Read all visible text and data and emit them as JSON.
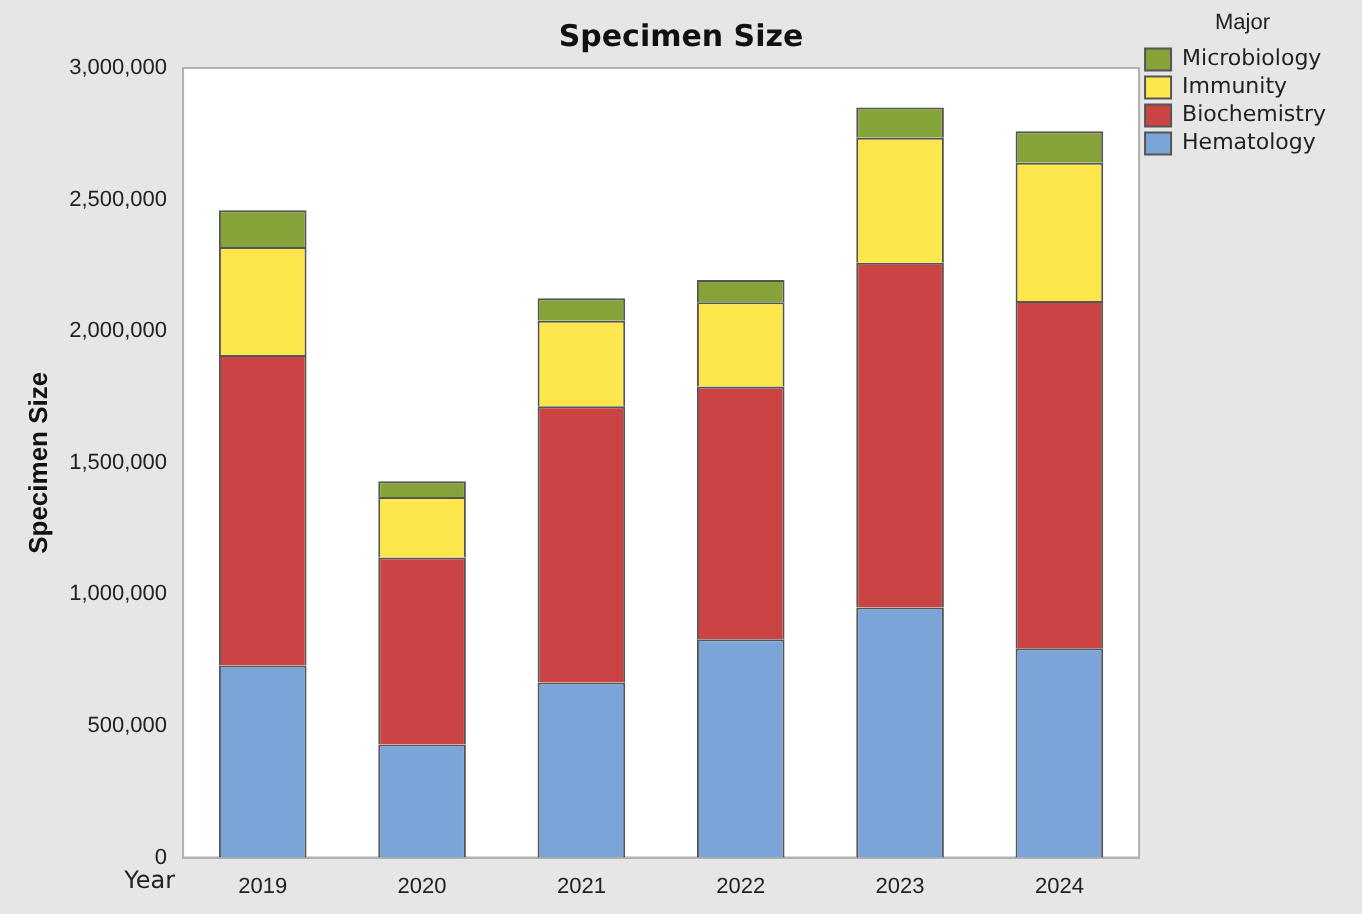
{
  "chart_data": {
    "type": "bar",
    "title": "Specimen Size",
    "xlabel": "Year",
    "ylabel": "Specimen Size",
    "legend_title": "Major",
    "categories": [
      "2019",
      "2020",
      "2021",
      "2022",
      "2023",
      "2024"
    ],
    "stacked": true,
    "ylim": [
      0,
      3000000
    ],
    "yticks": [
      {
        "value": 0,
        "label": "0"
      },
      {
        "value": 500000,
        "label": "500,000"
      },
      {
        "value": 1000000,
        "label": "1,000,000"
      },
      {
        "value": 1500000,
        "label": "1,500,000"
      },
      {
        "value": 2000000,
        "label": "2,000,000"
      },
      {
        "value": 2500000,
        "label": "2,500,000"
      },
      {
        "value": 3000000,
        "label": "3,000,000"
      }
    ],
    "grid": false,
    "legend": "top right",
    "series": [
      {
        "name": "Hematology",
        "color": "#7ba5d9",
        "values": [
          730000,
          430000,
          665000,
          830000,
          950000,
          795000
        ]
      },
      {
        "name": "Biochemistry",
        "color": "#c94442",
        "values": [
          1180000,
          710000,
          1050000,
          960000,
          1310000,
          1320000
        ]
      },
      {
        "name": "Immunity",
        "color": "#fde74c",
        "values": [
          410000,
          230000,
          325000,
          320000,
          475000,
          525000
        ]
      },
      {
        "name": "Microbiology",
        "color": "#86a33a",
        "values": [
          140000,
          60000,
          85000,
          85000,
          115000,
          120000
        ]
      }
    ]
  }
}
